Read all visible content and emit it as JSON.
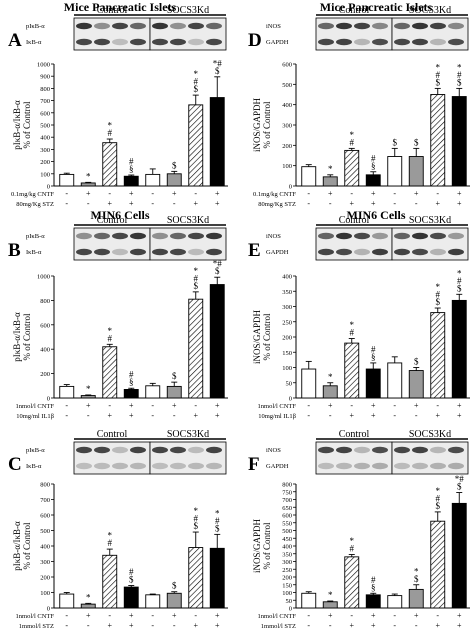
{
  "headers": {
    "left": "Mice Pancreatic Islets",
    "right": "Mice Pancreatic Islets",
    "row2_left": "MIN6 Cells",
    "row2_right": "MIN6 Cells"
  },
  "group_labels": {
    "control": "Control",
    "socs3kd": "SOCS3Kd"
  },
  "colors": {
    "ink": "#000000",
    "white_bar": "#ffffff",
    "grey_bar": "#9a9a9a",
    "black_bar": "#000000",
    "hatch": "#000000"
  },
  "chart_data": [
    {
      "panel": "A",
      "type": "bar",
      "ylabel": [
        "pIκB-α/IκB-α",
        "% of Control"
      ],
      "ylim": [
        0,
        1000
      ],
      "yticks": [
        0,
        100,
        200,
        300,
        400,
        500,
        600,
        700,
        800,
        900,
        1000
      ],
      "values": [
        95,
        25,
        355,
        80,
        95,
        100,
        665,
        725
      ],
      "errors": [
        10,
        5,
        30,
        10,
        45,
        20,
        80,
        170
      ],
      "annotations": [
        "",
        "*",
        "*\n#",
        "#\n§",
        "",
        "$",
        "*\n#\n$",
        "*#\n$"
      ],
      "blot_labels": [
        "pIκB-α",
        "IκB-α"
      ],
      "treatments": [
        {
          "label": "0.1mg/kg CNTF",
          "signs": [
            "-",
            "+",
            "-",
            "+",
            "-",
            "+",
            "-",
            "+"
          ]
        },
        {
          "label": "80mg/Kg STZ",
          "signs": [
            "-",
            "-",
            "+",
            "+",
            "-",
            "-",
            "+",
            "+"
          ]
        }
      ]
    },
    {
      "panel": "B",
      "type": "bar",
      "ylabel": [
        "pIκB-α/IκB-α",
        "% of Control"
      ],
      "ylim": [
        0,
        1000
      ],
      "yticks": [
        0,
        200,
        400,
        600,
        800,
        1000
      ],
      "values": [
        95,
        20,
        420,
        70,
        100,
        95,
        810,
        930
      ],
      "errors": [
        15,
        5,
        20,
        10,
        20,
        35,
        60,
        60
      ],
      "annotations": [
        "",
        "*",
        "*\n#",
        "#\n§",
        "",
        "$",
        "*\n#\n$",
        "*#\n$"
      ],
      "blot_labels": [
        "pIκB-α",
        "IκB-α"
      ],
      "treatments": [
        {
          "label": "1nmol/l CNTF",
          "signs": [
            "-",
            "+",
            "-",
            "+",
            "-",
            "+",
            "-",
            "+"
          ]
        },
        {
          "label": "10mg/ml IL1β",
          "signs": [
            "-",
            "-",
            "+",
            "+",
            "-",
            "-",
            "+",
            "+"
          ]
        }
      ]
    },
    {
      "panel": "C",
      "type": "bar",
      "ylabel": [
        "pIκB-α/IκB-α",
        "% of Control"
      ],
      "ylim": [
        0,
        800
      ],
      "yticks": [
        0,
        100,
        200,
        300,
        400,
        500,
        600,
        700,
        800
      ],
      "values": [
        90,
        25,
        340,
        135,
        85,
        95,
        390,
        385
      ],
      "errors": [
        10,
        5,
        40,
        10,
        5,
        10,
        100,
        90
      ],
      "annotations": [
        "",
        "*",
        "*\n#",
        "#\n$",
        "",
        "$",
        "*\n#\n$",
        "*\n#\n$"
      ],
      "blot_labels": [
        "pIκB-α",
        "IκB-α"
      ],
      "treatments": [
        {
          "label": "1nmol/l CNTF",
          "signs": [
            "-",
            "+",
            "-",
            "+",
            "-",
            "+",
            "-",
            "+"
          ]
        },
        {
          "label": "1mmol/l STZ",
          "signs": [
            "-",
            "-",
            "+",
            "+",
            "-",
            "-",
            "+",
            "+"
          ]
        }
      ]
    },
    {
      "panel": "D",
      "type": "bar",
      "ylabel": [
        "iNOS/GAPDH",
        "% of Control"
      ],
      "ylim": [
        0,
        600
      ],
      "yticks": [
        0,
        100,
        200,
        300,
        400,
        500,
        600
      ],
      "values": [
        95,
        45,
        175,
        55,
        145,
        145,
        450,
        440
      ],
      "errors": [
        10,
        10,
        10,
        15,
        40,
        40,
        30,
        40
      ],
      "annotations": [
        "",
        "*",
        "*\n#",
        "#\n§",
        "$",
        "$",
        "*\n#\n$",
        "*\n#\n$"
      ],
      "blot_labels": [
        "iNOS",
        "GAPDH"
      ],
      "treatments": [
        {
          "label": "0.1mg/kg CNTF",
          "signs": [
            "-",
            "+",
            "-",
            "+",
            "-",
            "+",
            "-",
            "+"
          ]
        },
        {
          "label": "80mg/Kg STZ",
          "signs": [
            "-",
            "-",
            "+",
            "+",
            "-",
            "-",
            "+",
            "+"
          ]
        }
      ]
    },
    {
      "panel": "E",
      "type": "bar",
      "ylabel": [
        "iNOS/GAPDH",
        "% of Control"
      ],
      "ylim": [
        0,
        400
      ],
      "yticks": [
        0,
        50,
        100,
        150,
        200,
        250,
        300,
        350,
        400
      ],
      "values": [
        95,
        40,
        180,
        95,
        115,
        90,
        280,
        320
      ],
      "errors": [
        25,
        10,
        15,
        20,
        20,
        10,
        15,
        20
      ],
      "annotations": [
        "",
        "*",
        "*\n#",
        "#\n§",
        "",
        "$",
        "*\n#\n$",
        "*\n#\n$"
      ],
      "blot_labels": [
        "iNOS",
        "GAPDH"
      ],
      "treatments": [
        {
          "label": "1nmol/l CNTF",
          "signs": [
            "-",
            "+",
            "-",
            "+",
            "-",
            "+",
            "-",
            "+"
          ]
        },
        {
          "label": "10mg/ml IL1β",
          "signs": [
            "-",
            "-",
            "+",
            "+",
            "-",
            "-",
            "+",
            "+"
          ]
        }
      ]
    },
    {
      "panel": "F",
      "type": "bar",
      "ylabel": [
        "iNOS/GAPDH",
        "% of Control"
      ],
      "ylim": [
        0,
        800
      ],
      "yticks": [
        0,
        50,
        100,
        150,
        200,
        250,
        300,
        350,
        400,
        450,
        500,
        550,
        600,
        650,
        700,
        750,
        800
      ],
      "values": [
        95,
        40,
        330,
        85,
        80,
        120,
        560,
        675
      ],
      "errors": [
        10,
        5,
        15,
        10,
        10,
        30,
        60,
        70
      ],
      "annotations": [
        "",
        "*",
        "*\n#",
        "#\n§",
        "",
        "*\n$",
        "*\n#\n$",
        "*#\n$"
      ],
      "blot_labels": [
        "iNOS",
        "GAPDH"
      ],
      "treatments": [
        {
          "label": "1nmol/l CNTF",
          "signs": [
            "-",
            "+",
            "-",
            "+",
            "-",
            "+",
            "-",
            "+"
          ]
        },
        {
          "label": "1mmol/l STZ",
          "signs": [
            "-",
            "-",
            "+",
            "+",
            "-",
            "-",
            "+",
            "+"
          ]
        }
      ]
    }
  ]
}
